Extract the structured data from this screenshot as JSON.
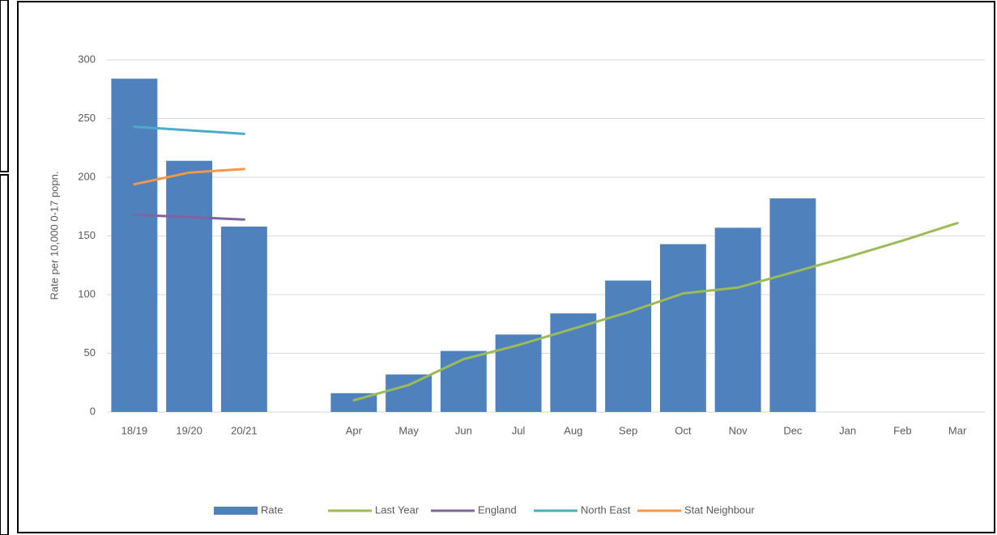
{
  "chart_data": {
    "type": "bar",
    "y_label": "Rate per 10,000 0-17 popn.",
    "categories": [
      "18/19",
      "19/20",
      "20/21",
      null,
      "Apr",
      "May",
      "Jun",
      "Jul",
      "Aug",
      "Sep",
      "Oct",
      "Nov",
      "Dec",
      "Jan",
      "Feb",
      "Mar"
    ],
    "series": [
      {
        "name": "Rate",
        "type": "bar",
        "color": "#4f81bd",
        "values": [
          284,
          214,
          158,
          null,
          16,
          32,
          52,
          66,
          84,
          112,
          143,
          157,
          182,
          null,
          null,
          null
        ]
      },
      {
        "name": "Last Year",
        "type": "line",
        "color": "#9bbb59",
        "values": [
          null,
          null,
          null,
          null,
          10,
          23,
          45,
          57,
          71,
          85,
          101,
          106,
          119,
          132,
          146,
          161
        ]
      },
      {
        "name": "England",
        "type": "line",
        "color": "#8064a2",
        "values": [
          168,
          166,
          164,
          null,
          null,
          null,
          null,
          null,
          null,
          null,
          null,
          null,
          null,
          null,
          null,
          null
        ]
      },
      {
        "name": "North East",
        "type": "line",
        "color": "#4bacc6",
        "values": [
          243,
          240,
          237,
          null,
          null,
          null,
          null,
          null,
          null,
          null,
          null,
          null,
          null,
          null,
          null,
          null
        ]
      },
      {
        "name": "Stat Neighbour",
        "type": "line",
        "color": "#f79646",
        "values": [
          194,
          204,
          207,
          null,
          null,
          null,
          null,
          null,
          null,
          null,
          null,
          null,
          null,
          null,
          null,
          null
        ]
      }
    ],
    "ylim": [
      0,
      300
    ],
    "yticks": [
      0,
      50,
      100,
      150,
      200,
      250,
      300
    ],
    "grid": true,
    "legend": "bottom"
  }
}
